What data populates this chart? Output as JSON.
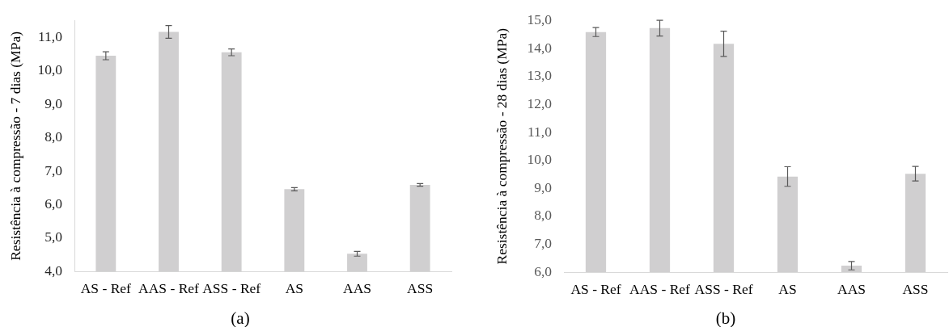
{
  "chart_data": [
    {
      "type": "bar",
      "ylabel": "Resistência à compressão - 7 dias (MPa)",
      "categories": [
        "AS - Ref",
        "AAS - Ref",
        "ASS - Ref",
        "AS",
        "AAS",
        "ASS"
      ],
      "values": [
        10.45,
        11.16,
        10.55,
        6.46,
        4.53,
        6.59
      ],
      "errors": [
        0.12,
        0.19,
        0.1,
        0.05,
        0.07,
        0.04
      ],
      "color": "#d0cfd0",
      "ylim": [
        4,
        11.5
      ],
      "yticks": [
        {
          "value": 4,
          "label": "4,0"
        },
        {
          "value": 5,
          "label": "5,0"
        },
        {
          "value": 6,
          "label": "6,0"
        },
        {
          "value": 7,
          "label": "7,0"
        },
        {
          "value": 8,
          "label": "8,0"
        },
        {
          "value": 9,
          "label": "9,0"
        },
        {
          "value": 10,
          "label": "10,0"
        },
        {
          "value": 11,
          "label": "11,0"
        }
      ],
      "annotations": [
        "(a)"
      ]
    },
    {
      "type": "bar",
      "ylabel": "Resistência à compressão - 28 dias (MPa)",
      "categories": [
        "AS - Ref",
        "AAS - Ref",
        "ASS - Ref",
        "AS",
        "AAS",
        "ASS"
      ],
      "values": [
        14.59,
        14.73,
        14.17,
        9.42,
        6.23,
        9.52
      ],
      "errors": [
        0.16,
        0.28,
        0.45,
        0.35,
        0.15,
        0.26
      ],
      "color": "#d0cfd0",
      "ylim": [
        6,
        15
      ],
      "yticks": [
        {
          "value": 6,
          "label": "6,0"
        },
        {
          "value": 7,
          "label": "7,0"
        },
        {
          "value": 8,
          "label": "8,0"
        },
        {
          "value": 9,
          "label": "9,0"
        },
        {
          "value": 10,
          "label": "10,0"
        },
        {
          "value": 11,
          "label": "11,0"
        },
        {
          "value": 12,
          "label": "12,0"
        },
        {
          "value": 13,
          "label": "13,0"
        },
        {
          "value": 14,
          "label": "14,0"
        },
        {
          "value": 15,
          "label": "15,0"
        }
      ],
      "annotations": [
        "(b)"
      ]
    }
  ]
}
